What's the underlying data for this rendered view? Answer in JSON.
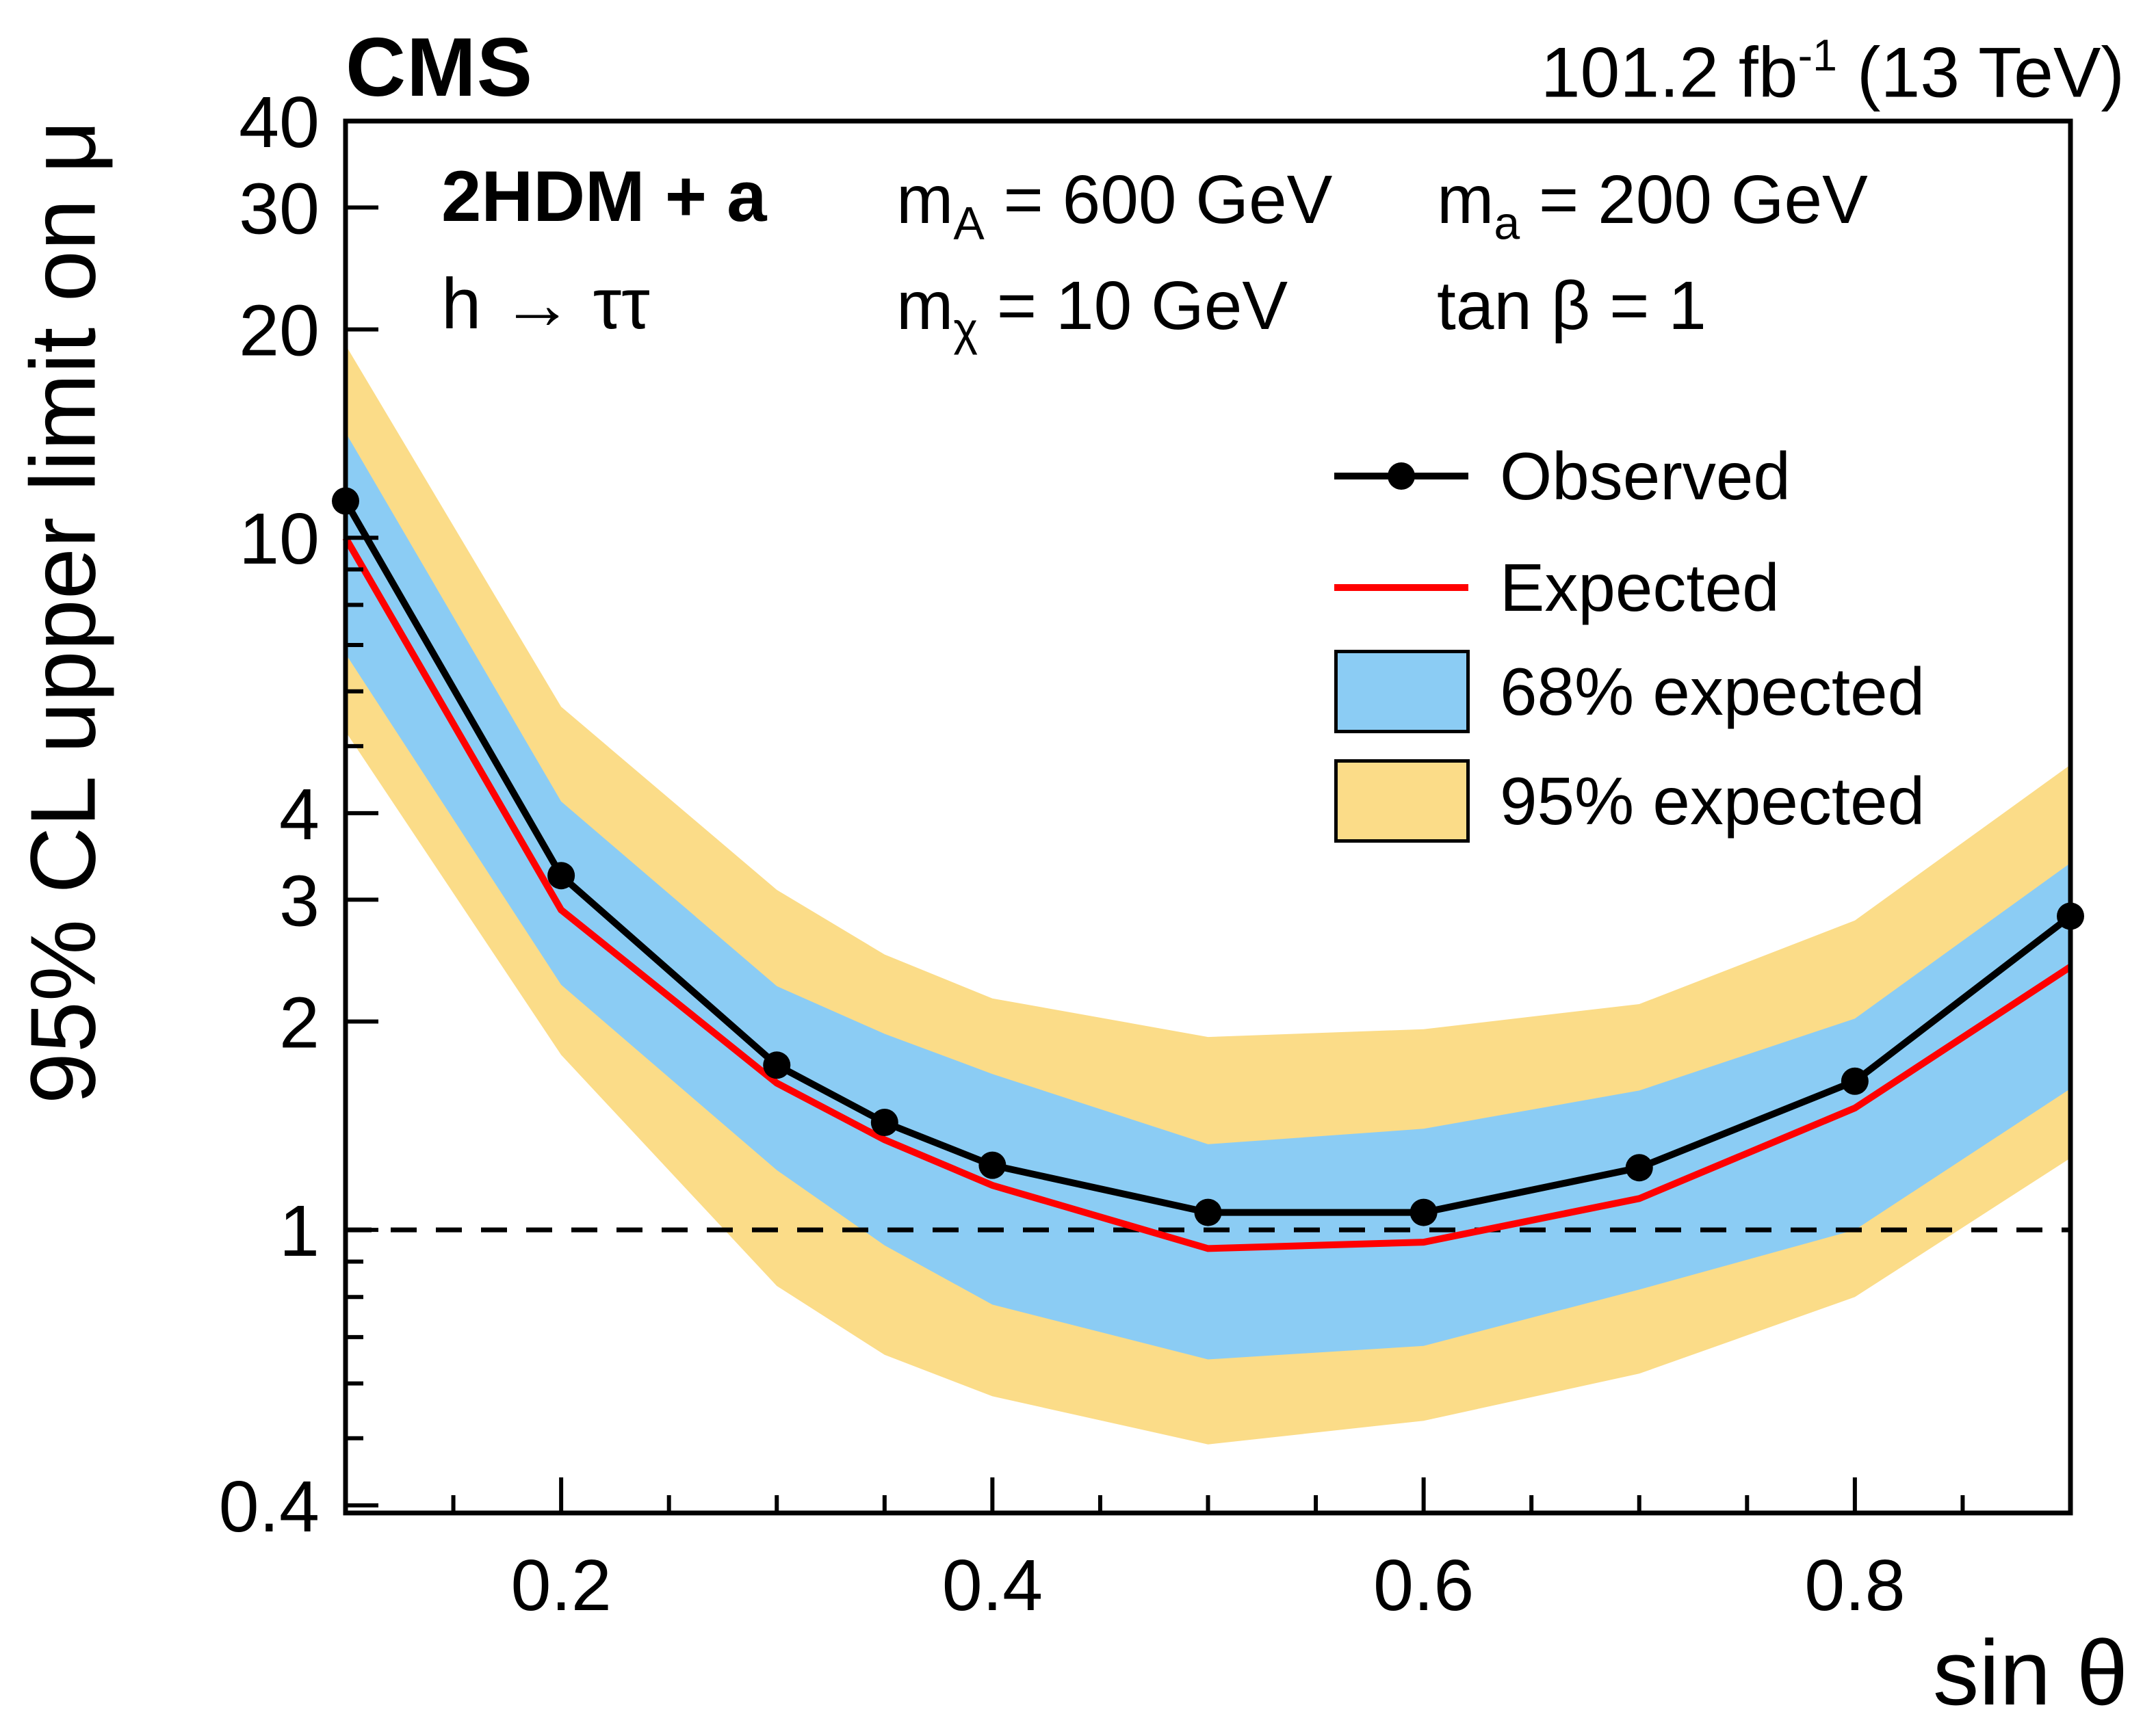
{
  "header": {
    "experiment": "CMS",
    "lumi_prefix": "101.2 fb",
    "lumi_sup": "-1",
    "lumi_suffix": " (13 TeV)"
  },
  "annotations": {
    "model": "2HDM + a",
    "decay": "h → ττ",
    "mA": {
      "base": "m",
      "sub": "A",
      "rest": " = 600 GeV"
    },
    "mchi": {
      "base": "m",
      "sub": "χ",
      "rest": " = 10 GeV"
    },
    "ma": {
      "base": "m",
      "sub": "a",
      "rest": " = 200 GeV"
    },
    "tanb": "tan β = 1"
  },
  "legend": {
    "observed": "Observed",
    "expected": "Expected",
    "band68": "68% expected",
    "band95": "95% expected"
  },
  "chart_data": {
    "type": "line",
    "title": "2HDM + a, h → ττ, 95% CL upper limits",
    "xlabel": "sin θ",
    "ylabel": "95% CL upper limit on μ",
    "xscale": "linear",
    "yscale": "log",
    "xlim": [
      0.1,
      0.9
    ],
    "ylim": [
      0.39,
      40
    ],
    "grid": false,
    "legend_position": "top-right",
    "reference_line_y": 1,
    "xticks_labeled": [
      0.2,
      0.4,
      0.6,
      0.8
    ],
    "xticks_minor": [
      0.15,
      0.25,
      0.3,
      0.35,
      0.45,
      0.5,
      0.55,
      0.65,
      0.7,
      0.75,
      0.85
    ],
    "yticks_labeled": [
      0.4,
      1,
      2,
      3,
      4,
      10,
      20,
      30,
      40
    ],
    "yticks_minor": [
      0.5,
      0.6,
      0.7,
      0.8,
      0.9,
      5,
      6,
      7,
      8,
      9
    ],
    "x": [
      0.1,
      0.2,
      0.3,
      0.35,
      0.4,
      0.5,
      0.6,
      0.7,
      0.8,
      0.9
    ],
    "series": [
      {
        "name": "Observed",
        "values": [
          11.3,
          3.25,
          1.73,
          1.43,
          1.24,
          1.06,
          1.06,
          1.23,
          1.64,
          2.84
        ]
      },
      {
        "name": "Expected",
        "values": [
          10.0,
          2.9,
          1.63,
          1.35,
          1.16,
          0.94,
          0.96,
          1.11,
          1.5,
          2.4
        ]
      },
      {
        "name": "68% expected up",
        "values": [
          14.2,
          4.16,
          2.25,
          1.92,
          1.68,
          1.33,
          1.4,
          1.59,
          2.02,
          3.39
        ]
      },
      {
        "name": "68% expected down",
        "values": [
          6.8,
          2.26,
          1.22,
          0.95,
          0.78,
          0.65,
          0.68,
          0.82,
          1.0,
          1.6
        ]
      },
      {
        "name": "95% expected up",
        "values": [
          19.0,
          5.7,
          3.1,
          2.5,
          2.16,
          1.9,
          1.95,
          2.12,
          2.8,
          4.7
        ]
      },
      {
        "name": "95% expected down",
        "values": [
          5.25,
          1.79,
          0.83,
          0.66,
          0.575,
          0.49,
          0.53,
          0.62,
          0.8,
          1.27
        ]
      }
    ],
    "colors": {
      "observed": "#000000",
      "expected": "#ff0000",
      "band68": "#8bccf4",
      "band95": "#fbdc88",
      "frame": "#000000"
    }
  }
}
